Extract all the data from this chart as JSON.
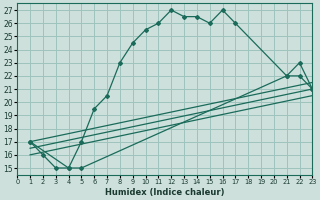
{
  "xlabel": "Humidex (Indice chaleur)",
  "xlim": [
    0,
    23
  ],
  "ylim": [
    14.5,
    27.5
  ],
  "xticks": [
    0,
    1,
    2,
    3,
    4,
    5,
    6,
    7,
    8,
    9,
    10,
    11,
    12,
    13,
    14,
    15,
    16,
    17,
    18,
    19,
    20,
    21,
    22,
    23
  ],
  "yticks": [
    15,
    16,
    17,
    18,
    19,
    20,
    21,
    22,
    23,
    24,
    25,
    26,
    27
  ],
  "bg_color": "#cde0dc",
  "grid_color": "#9ec4be",
  "line_color": "#1a6b5a",
  "line1_x": [
    1,
    2,
    3,
    4,
    5,
    6,
    7,
    8,
    9,
    10,
    11,
    12,
    13,
    14,
    15,
    16,
    17,
    21,
    22,
    23
  ],
  "line1_y": [
    17,
    16,
    15,
    15,
    17,
    19.5,
    20.5,
    23,
    24.5,
    25.5,
    26.0,
    27,
    26.5,
    26.5,
    26,
    27,
    26,
    22,
    23,
    21
  ],
  "line2_x": [
    1,
    4,
    5,
    21,
    22,
    23
  ],
  "line2_y": [
    17,
    15,
    15,
    22,
    22,
    21
  ],
  "line3_x": [
    1,
    23
  ],
  "line3_y": [
    17.0,
    21.5
  ],
  "line4_x": [
    1,
    23
  ],
  "line4_y": [
    16.5,
    21.0
  ],
  "line5_x": [
    1,
    23
  ],
  "line5_y": [
    16.0,
    20.5
  ]
}
